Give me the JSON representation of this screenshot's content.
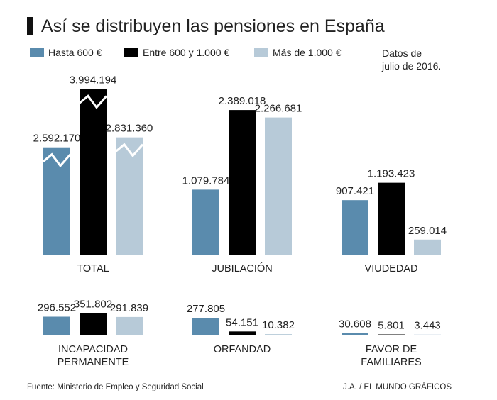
{
  "chart_data": {
    "type": "bar",
    "title": "Así se distribuyen las pensiones en España",
    "note": [
      "Datos de",
      "julio de 2016."
    ],
    "source": "Fuente: Ministerio de Empleo y Seguridad Social",
    "credit": "J.A. / EL MUNDO GRÁFICOS",
    "series": [
      {
        "name": "Hasta 600 €",
        "color": "#5a8bad"
      },
      {
        "name": "Entre 600 y 1.000 €",
        "color": "#000000"
      },
      {
        "name": "Más de 1.000 €",
        "color": "#b7cad8"
      }
    ],
    "panels": [
      {
        "label": [
          "TOTAL"
        ],
        "values": [
          2592170,
          3994194,
          2831360
        ],
        "value_labels": [
          "2.592.170",
          "3.994.194",
          "2.831.360"
        ],
        "ylim": [
          0,
          4000000
        ],
        "broken": true
      },
      {
        "label": [
          "JUBILACIÓN"
        ],
        "values": [
          1079784,
          2389018,
          2266681
        ],
        "value_labels": [
          "1.079.784",
          "2.389.018",
          "2.266.681"
        ],
        "ylim": [
          0,
          2740000
        ]
      },
      {
        "label": [
          "VIUDEDAD"
        ],
        "values": [
          907421,
          1193423,
          259014
        ],
        "value_labels": [
          "907.421",
          "1.193.423",
          "259.014"
        ],
        "ylim": [
          0,
          2740000
        ]
      },
      {
        "label": [
          "INCAPACIDAD",
          "PERMANENTE"
        ],
        "values": [
          296552,
          351802,
          291839
        ],
        "value_labels": [
          "296.552",
          "351.802",
          "291.839"
        ],
        "ylim": [
          0,
          465000
        ]
      },
      {
        "label": [
          "ORFANDAD"
        ],
        "values": [
          277805,
          54151,
          10382
        ],
        "value_labels": [
          "277.805",
          "54.151",
          "10.382"
        ],
        "ylim": [
          0,
          465000
        ]
      },
      {
        "label": [
          "FAVOR DE",
          "FAMILIARES"
        ],
        "values": [
          30608,
          5801,
          3443
        ],
        "value_labels": [
          "30.608",
          "5.801",
          "3.443"
        ],
        "ylim": [
          0,
          465000
        ]
      }
    ]
  }
}
